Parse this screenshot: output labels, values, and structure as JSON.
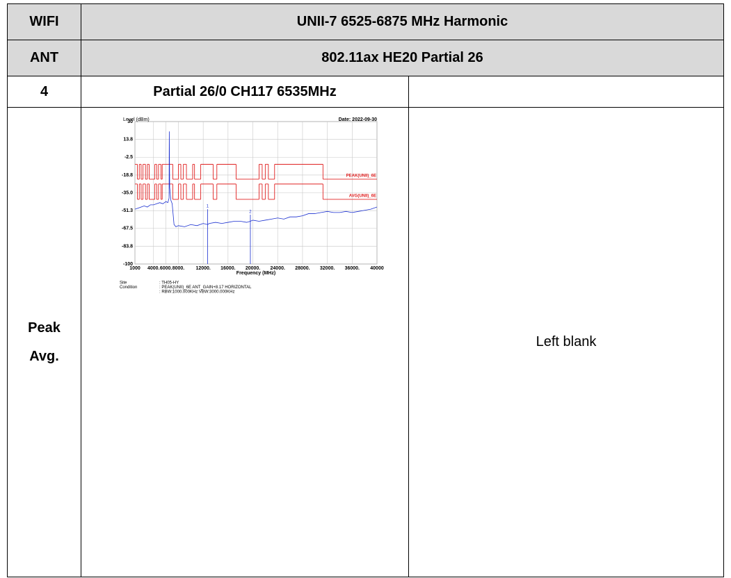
{
  "table": {
    "rows": [
      [
        "WIFI",
        "UNII-7 6525-6875 MHz Harmonic"
      ],
      [
        "ANT",
        "802.11ax HE20 Partial 26"
      ],
      [
        "4",
        "Partial 26/0 CH117 6535MHz"
      ],
      [
        [
          "Peak",
          "Avg."
        ],
        "Left blank"
      ]
    ]
  },
  "chart_data": {
    "type": "line",
    "y_label": "Level (dBm)",
    "date": "Date: 2022-09-30",
    "x_label": "Frequency (MHz)",
    "xlim": [
      1000,
      40000
    ],
    "ylim": [
      -100,
      30
    ],
    "xticks": [
      1000,
      {
        "value": 4000,
        "label": "4000."
      },
      {
        "value": 6000,
        "label": "6000."
      },
      {
        "value": 8000,
        "label": "8000."
      },
      {
        "value": 12000,
        "label": "12000."
      },
      {
        "value": 16000,
        "label": "16000."
      },
      {
        "value": 20000,
        "label": "20000."
      },
      {
        "value": 24000,
        "label": "24000."
      },
      {
        "value": 28000,
        "label": "28000."
      },
      {
        "value": 32000,
        "label": "32000."
      },
      {
        "value": 36000,
        "label": "36000."
      },
      {
        "value": 40000,
        "label": "40000"
      }
    ],
    "yticks": [
      30,
      13.8,
      -2.5,
      -18.8,
      {
        "value": -35,
        "label": "-35.0"
      },
      -51.3,
      -67.5,
      -83.8,
      -100
    ],
    "grid": true,
    "series": [
      {
        "name": "PEAK(UNII)_6E",
        "color": "#e02020",
        "step": true,
        "x": [
          1000,
          1400,
          1700,
          2000,
          2300,
          2700,
          3000,
          3300,
          4200,
          4500,
          4800,
          5200,
          5400,
          7100,
          8000,
          8400,
          8800,
          9300,
          10300,
          10600,
          11600,
          13600,
          14200,
          17300,
          21000,
          21500,
          22000,
          22500,
          23500,
          31300
        ],
        "values": [
          -9,
          -22.6,
          -9,
          -22.6,
          -9,
          -22.6,
          -9,
          -22.6,
          -9,
          -22.6,
          -9,
          -22.6,
          -9,
          -22.6,
          -9,
          -22.6,
          -9,
          -22.6,
          -9,
          -22.6,
          -9,
          -22.6,
          -9,
          -22.6,
          -9,
          -22.6,
          -9,
          -22.6,
          -9,
          -22.6
        ]
      },
      {
        "name": "AVG(UNII)_6E",
        "color": "#e02020",
        "step": true,
        "x": [
          1000,
          1400,
          1700,
          2000,
          2300,
          2700,
          3000,
          3300,
          4200,
          4500,
          4800,
          5200,
          5400,
          7100,
          8000,
          8400,
          8800,
          9300,
          10300,
          10600,
          11600,
          13600,
          14200,
          17300,
          21000,
          21500,
          22000,
          22500,
          23500,
          31300
        ],
        "values": [
          -27,
          -41,
          -27,
          -41,
          -27,
          -41,
          -27,
          -41,
          -27,
          -41,
          -27,
          -41,
          -27,
          -41,
          -27,
          -41,
          -27,
          -41,
          -27,
          -41,
          -27,
          -41,
          -27,
          -41,
          -27,
          -41,
          -27,
          -41,
          -27,
          -41
        ]
      },
      {
        "color": "#1a2fd0",
        "x": [
          1000,
          1500,
          2000,
          2500,
          3000,
          3500,
          4000,
          4500,
          5000,
          5500,
          6000,
          6300,
          6500,
          6535,
          6600,
          6800,
          7000,
          7300,
          7600,
          8000,
          9000,
          10000,
          11000,
          12000,
          12700,
          13000,
          14000,
          15000,
          16000,
          17000,
          18000,
          19000,
          19600,
          20000,
          21000,
          22000,
          23000,
          24000,
          25000,
          26000,
          27000,
          28000,
          29000,
          30000,
          31000,
          32000,
          33000,
          34000,
          35000,
          36000,
          37000,
          38000,
          39000,
          40000
        ],
        "values": [
          -50,
          -49,
          -48,
          -47,
          -48,
          -46,
          -46,
          -45,
          -44,
          -45,
          -43,
          -44,
          -40,
          21,
          -30,
          -42,
          -45,
          -64,
          -66,
          -65,
          -66,
          -64,
          -65,
          -63,
          -64,
          -63,
          -62,
          -63,
          -62,
          -61,
          -61,
          -62,
          -61,
          -60,
          -61,
          -60,
          -59,
          -58,
          -59,
          -57,
          -57,
          -56,
          -54,
          -54,
          -53,
          -52,
          -53,
          -53,
          -52,
          -53,
          -52,
          -51,
          -50,
          -48
        ]
      }
    ],
    "markers": [
      {
        "label": "1",
        "x": 12700,
        "value": -50
      },
      {
        "label": "2",
        "x": 19600,
        "value": -55
      }
    ],
    "info": [
      {
        "label": "Site",
        "text": ": TH05-HY"
      },
      {
        "label": "Condition",
        "text": ": PEAK(UNII)_6E ANT_GAIN+8.17 HORIZONTAL"
      },
      {
        "text": ": RBW:1000.000KHz VBW:3000.000KHz"
      }
    ]
  }
}
